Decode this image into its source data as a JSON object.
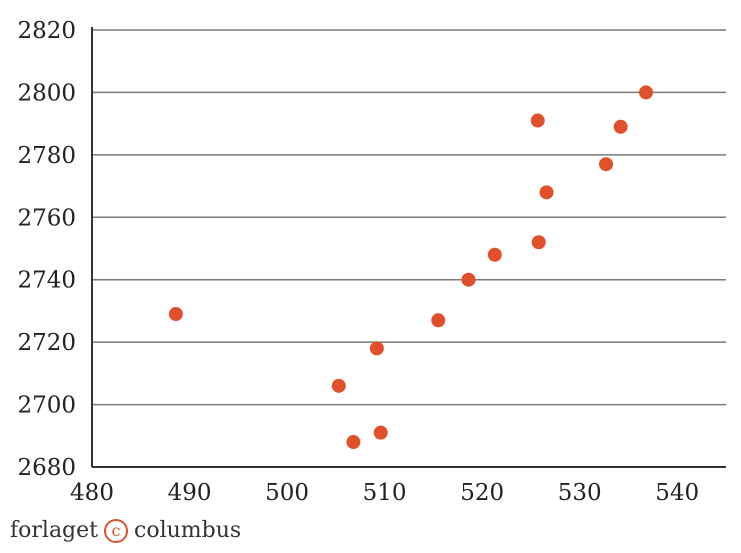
{
  "chart_data": {
    "type": "scatter",
    "title": "",
    "xlabel": "",
    "ylabel": "",
    "xlim": [
      480,
      545
    ],
    "ylim": [
      2680,
      2820
    ],
    "x_ticks": [
      480,
      490,
      500,
      510,
      520,
      530,
      540
    ],
    "y_ticks": [
      2680,
      2700,
      2720,
      2740,
      2760,
      2780,
      2800,
      2820
    ],
    "grid": true,
    "point_color": "#e0502a",
    "points": [
      {
        "x": 488.6,
        "y": 2729
      },
      {
        "x": 505.3,
        "y": 2706
      },
      {
        "x": 506.8,
        "y": 2688
      },
      {
        "x": 509.2,
        "y": 2718
      },
      {
        "x": 509.6,
        "y": 2691
      },
      {
        "x": 515.5,
        "y": 2727
      },
      {
        "x": 518.6,
        "y": 2740
      },
      {
        "x": 521.3,
        "y": 2748
      },
      {
        "x": 525.7,
        "y": 2791
      },
      {
        "x": 525.8,
        "y": 2752
      },
      {
        "x": 526.6,
        "y": 2768
      },
      {
        "x": 532.7,
        "y": 2777
      },
      {
        "x": 534.2,
        "y": 2789
      },
      {
        "x": 536.8,
        "y": 2800
      }
    ]
  },
  "footer": {
    "left_text": "forlaget",
    "logo_symbol": "c",
    "right_text": "columbus"
  }
}
